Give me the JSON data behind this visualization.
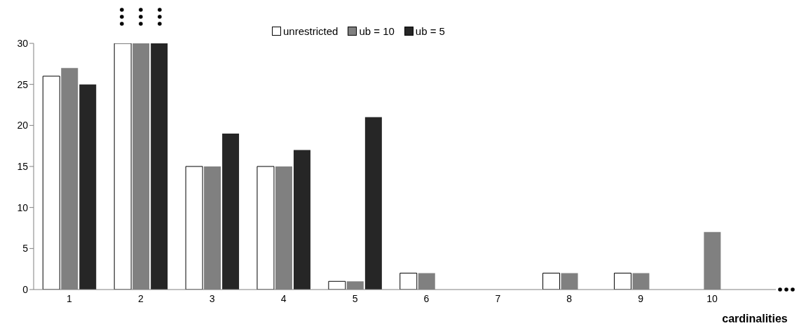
{
  "chart_data": {
    "type": "bar",
    "xlabel": "cardinalities",
    "categories": [
      "1",
      "2",
      "3",
      "4",
      "5",
      "6",
      "7",
      "8",
      "9",
      "10"
    ],
    "series": [
      {
        "name": "unrestricted",
        "color": "#ffffff",
        "values": [
          26,
          30,
          15,
          15,
          1,
          2,
          0,
          2,
          2,
          0
        ]
      },
      {
        "name": "ub = 10",
        "color": "#808080",
        "values": [
          27,
          30,
          15,
          15,
          1,
          2,
          0,
          2,
          2,
          7
        ]
      },
      {
        "name": "ub = 5",
        "color": "#262626",
        "values": [
          25,
          30,
          19,
          17,
          21,
          0,
          0,
          0,
          0,
          0
        ]
      }
    ],
    "ylim": [
      0,
      30
    ],
    "yticks": [
      0,
      5,
      10,
      15,
      20,
      25,
      30
    ],
    "grid": false,
    "legend": "top"
  }
}
